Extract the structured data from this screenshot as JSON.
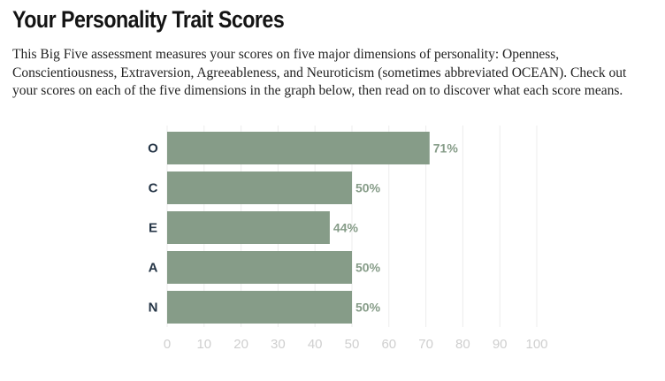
{
  "header": {
    "title": "Your Personality Trait Scores"
  },
  "intro": {
    "text": "This Big Five assessment measures your scores on five major dimensions of personality: Openness, Conscientiousness, Extraversion, Agreeableness, and Neuroticism (sometimes abbreviated OCEAN). Check out your scores on each of the five dimensions in the graph below, then read on to discover what each score means."
  },
  "colors": {
    "bar": "#869c88",
    "value_label": "#869c88",
    "category_label": "#253546",
    "tick_label": "#cfcfcf",
    "grid": "#ececec"
  },
  "chart_data": {
    "type": "bar",
    "orientation": "horizontal",
    "categories": [
      "O",
      "C",
      "E",
      "A",
      "N"
    ],
    "values": [
      71,
      50,
      44,
      50,
      50
    ],
    "value_labels": [
      "71%",
      "50%",
      "44%",
      "50%",
      "50%"
    ],
    "xlim": [
      0,
      100
    ],
    "xticks": [
      0,
      10,
      20,
      30,
      40,
      50,
      60,
      70,
      80,
      90,
      100
    ],
    "grid": true,
    "legend": "none"
  }
}
